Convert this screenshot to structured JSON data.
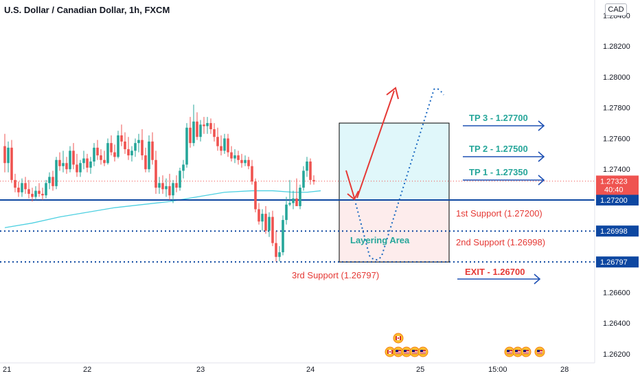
{
  "header": {
    "title": "U.S. Dollar / Canadian Dollar, 1h, FXCM",
    "currency_badge": "CAD"
  },
  "chart_data": {
    "type": "candlestick",
    "symbol": "USDCAD",
    "timeframe": "1h",
    "ylim": [
      1.2615,
      1.285
    ],
    "y_ticks": [
      1.262,
      1.264,
      1.266,
      1.268,
      1.27,
      1.272,
      1.274,
      1.276,
      1.278,
      1.28,
      1.282,
      1.284
    ],
    "y_tick_labels": [
      "1.26200",
      "1.26400",
      "1.26600",
      "1.26800",
      "1.27000",
      "1.27200",
      "1.27400",
      "1.27600",
      "1.27800",
      "1.28000",
      "1.28200",
      "1.28400"
    ],
    "x_labels": [
      {
        "label": "21",
        "bar": 0
      },
      {
        "label": "22",
        "bar": 24
      },
      {
        "label": "23",
        "bar": 57
      },
      {
        "label": "24",
        "bar": 89
      },
      {
        "label": "25",
        "bar": 121
      },
      {
        "label": "15:00",
        "bar": 142
      },
      {
        "label": "28",
        "bar": 163
      }
    ],
    "candles": [
      [
        1.2755,
        1.2763,
        1.2738,
        1.2744
      ],
      [
        1.2744,
        1.2758,
        1.2738,
        1.2754
      ],
      [
        1.2754,
        1.2759,
        1.2731,
        1.2733
      ],
      [
        1.2733,
        1.2737,
        1.2725,
        1.2728
      ],
      [
        1.2728,
        1.2732,
        1.2722,
        1.2725
      ],
      [
        1.2725,
        1.2734,
        1.2722,
        1.2731
      ],
      [
        1.2731,
        1.2735,
        1.2724,
        1.2727
      ],
      [
        1.2727,
        1.2733,
        1.2721,
        1.2724
      ],
      [
        1.2724,
        1.2728,
        1.2719,
        1.2722
      ],
      [
        1.2722,
        1.2729,
        1.272,
        1.2726
      ],
      [
        1.2726,
        1.2731,
        1.2722,
        1.2724
      ],
      [
        1.2724,
        1.2728,
        1.272,
        1.2723
      ],
      [
        1.2723,
        1.2733,
        1.2721,
        1.2731
      ],
      [
        1.2731,
        1.2738,
        1.2727,
        1.2735
      ],
      [
        1.2735,
        1.2739,
        1.2726,
        1.2729
      ],
      [
        1.2729,
        1.2748,
        1.2727,
        1.2746
      ],
      [
        1.2746,
        1.2751,
        1.2739,
        1.2742
      ],
      [
        1.2742,
        1.2752,
        1.2738,
        1.2744
      ],
      [
        1.2744,
        1.2748,
        1.2737,
        1.274
      ],
      [
        1.274,
        1.2755,
        1.2738,
        1.2752
      ],
      [
        1.2752,
        1.2757,
        1.274,
        1.2743
      ],
      [
        1.2743,
        1.275,
        1.2735,
        1.2738
      ],
      [
        1.2738,
        1.2746,
        1.2735,
        1.2744
      ],
      [
        1.2744,
        1.2752,
        1.274,
        1.2747
      ],
      [
        1.2747,
        1.275,
        1.2738,
        1.2741
      ],
      [
        1.2741,
        1.2748,
        1.2737,
        1.2745
      ],
      [
        1.2745,
        1.2757,
        1.2742,
        1.2754
      ],
      [
        1.2754,
        1.2759,
        1.2746,
        1.2749
      ],
      [
        1.2749,
        1.2753,
        1.2743,
        1.2746
      ],
      [
        1.2746,
        1.2752,
        1.2742,
        1.2744
      ],
      [
        1.2744,
        1.276,
        1.2743,
        1.2757
      ],
      [
        1.2757,
        1.2762,
        1.2749,
        1.2751
      ],
      [
        1.2751,
        1.2756,
        1.2745,
        1.2748
      ],
      [
        1.2748,
        1.2765,
        1.2747,
        1.2762
      ],
      [
        1.2762,
        1.2769,
        1.2755,
        1.2758
      ],
      [
        1.2758,
        1.2764,
        1.275,
        1.2753
      ],
      [
        1.2753,
        1.2761,
        1.2746,
        1.2749
      ],
      [
        1.2749,
        1.2755,
        1.2745,
        1.2752
      ],
      [
        1.2752,
        1.276,
        1.2748,
        1.2757
      ],
      [
        1.2757,
        1.2763,
        1.2751,
        1.2759
      ],
      [
        1.2759,
        1.2766,
        1.2746,
        1.2749
      ],
      [
        1.2749,
        1.2754,
        1.2738,
        1.274
      ],
      [
        1.274,
        1.2762,
        1.2738,
        1.2758
      ],
      [
        1.2758,
        1.2764,
        1.2743,
        1.2746
      ],
      [
        1.2746,
        1.2752,
        1.2724,
        1.2728
      ],
      [
        1.2728,
        1.2735,
        1.2724,
        1.2731
      ],
      [
        1.2731,
        1.2736,
        1.2724,
        1.2727
      ],
      [
        1.2727,
        1.2734,
        1.2722,
        1.2729
      ],
      [
        1.2729,
        1.2737,
        1.272,
        1.2723
      ],
      [
        1.2723,
        1.2733,
        1.2718,
        1.2731
      ],
      [
        1.2731,
        1.2736,
        1.2725,
        1.2728
      ],
      [
        1.2728,
        1.2741,
        1.2726,
        1.2739
      ],
      [
        1.2739,
        1.2746,
        1.2734,
        1.2743
      ],
      [
        1.2743,
        1.277,
        1.2741,
        1.2767
      ],
      [
        1.2767,
        1.2774,
        1.2754,
        1.2757
      ],
      [
        1.2757,
        1.2782,
        1.2755,
        1.2771
      ],
      [
        1.2771,
        1.2777,
        1.2759,
        1.2761
      ],
      [
        1.2761,
        1.2772,
        1.2758,
        1.2769
      ],
      [
        1.2769,
        1.2774,
        1.2763,
        1.2768
      ],
      [
        1.2768,
        1.2774,
        1.2763,
        1.277
      ],
      [
        1.277,
        1.2773,
        1.2763,
        1.2766
      ],
      [
        1.2766,
        1.277,
        1.2758,
        1.2761
      ],
      [
        1.2761,
        1.2767,
        1.2752,
        1.2755
      ],
      [
        1.2755,
        1.2762,
        1.2749,
        1.2752
      ],
      [
        1.2752,
        1.2763,
        1.275,
        1.276
      ],
      [
        1.276,
        1.2763,
        1.2748,
        1.2751
      ],
      [
        1.2751,
        1.2755,
        1.2745,
        1.2747
      ],
      [
        1.2747,
        1.2753,
        1.2744,
        1.2749
      ],
      [
        1.2749,
        1.2752,
        1.2743,
        1.2746
      ],
      [
        1.2746,
        1.275,
        1.2741,
        1.2744
      ],
      [
        1.2744,
        1.2749,
        1.2742,
        1.2746
      ],
      [
        1.2746,
        1.2748,
        1.274,
        1.2742
      ],
      [
        1.2742,
        1.2746,
        1.273,
        1.2732
      ],
      [
        1.2732,
        1.2734,
        1.2712,
        1.2714
      ],
      [
        1.2714,
        1.2718,
        1.2704,
        1.2706
      ],
      [
        1.2706,
        1.2714,
        1.27,
        1.2711
      ],
      [
        1.2711,
        1.2716,
        1.2698,
        1.27
      ],
      [
        1.27,
        1.2712,
        1.2696,
        1.2709
      ],
      [
        1.2709,
        1.2713,
        1.269,
        1.2692
      ],
      [
        1.2692,
        1.27,
        1.268,
        1.2683
      ],
      [
        1.2683,
        1.269,
        1.268,
        1.2686
      ],
      [
        1.2686,
        1.271,
        1.2684,
        1.2707
      ],
      [
        1.2707,
        1.2722,
        1.2704,
        1.2717
      ],
      [
        1.2717,
        1.2733,
        1.2716,
        1.2718
      ],
      [
        1.2718,
        1.2726,
        1.2714,
        1.2721
      ],
      [
        1.2721,
        1.2734,
        1.2718,
        1.2716
      ],
      [
        1.2716,
        1.273,
        1.2714,
        1.2728
      ],
      [
        1.2728,
        1.2742,
        1.2726,
        1.2739
      ],
      [
        1.2739,
        1.2748,
        1.2735,
        1.2745
      ],
      [
        1.2745,
        1.2747,
        1.273,
        1.2733
      ],
      [
        1.2733,
        1.2736,
        1.273,
        1.2732
      ]
    ],
    "ema": [
      [
        0,
        1.2702
      ],
      [
        8,
        1.2705
      ],
      [
        16,
        1.2709
      ],
      [
        24,
        1.2712
      ],
      [
        32,
        1.2715
      ],
      [
        40,
        1.2717
      ],
      [
        48,
        1.2719
      ],
      [
        56,
        1.2722
      ],
      [
        64,
        1.2725
      ],
      [
        72,
        1.2726
      ],
      [
        78,
        1.2726
      ],
      [
        84,
        1.2725
      ],
      [
        88,
        1.2725
      ],
      [
        92,
        1.2726
      ]
    ],
    "price_lines": [
      {
        "value": 1.272,
        "label": "1.27200",
        "style": "solid"
      },
      {
        "value": 1.26998,
        "label": "1.26998",
        "style": "dotted"
      },
      {
        "value": 1.26797,
        "label": "1.26797",
        "style": "dotted"
      }
    ],
    "current_price": {
      "value": 1.27323,
      "label": "1.27323",
      "countdown": "40:40"
    },
    "zone_top": 1.277,
    "zone_mid": 1.272,
    "zone_bottom": 1.26797,
    "annotations": {
      "tp3": "TP 3 - 1.27700",
      "tp2": "TP 2 - 1.27500",
      "tp1": "TP 1 - 1.27350",
      "support1": "1st Support (1.27200)",
      "support2": "2nd Support (1.26998)",
      "support3": "3rd Support (1.26797)",
      "exit": "EXIT - 1.26700",
      "layering": "Layering Area"
    },
    "colors": {
      "up": "#26a69a",
      "down": "#ef5350",
      "ema": "#4dd0e1",
      "blue": "#0d47a1",
      "teal_text": "#26a69a",
      "red_text": "#e53935",
      "arrow_red": "#e53935",
      "arrow_dotted": "#1565c0",
      "zone_top_fill": "#e0f7fa",
      "zone_bottom_fill": "#fdecec"
    }
  }
}
